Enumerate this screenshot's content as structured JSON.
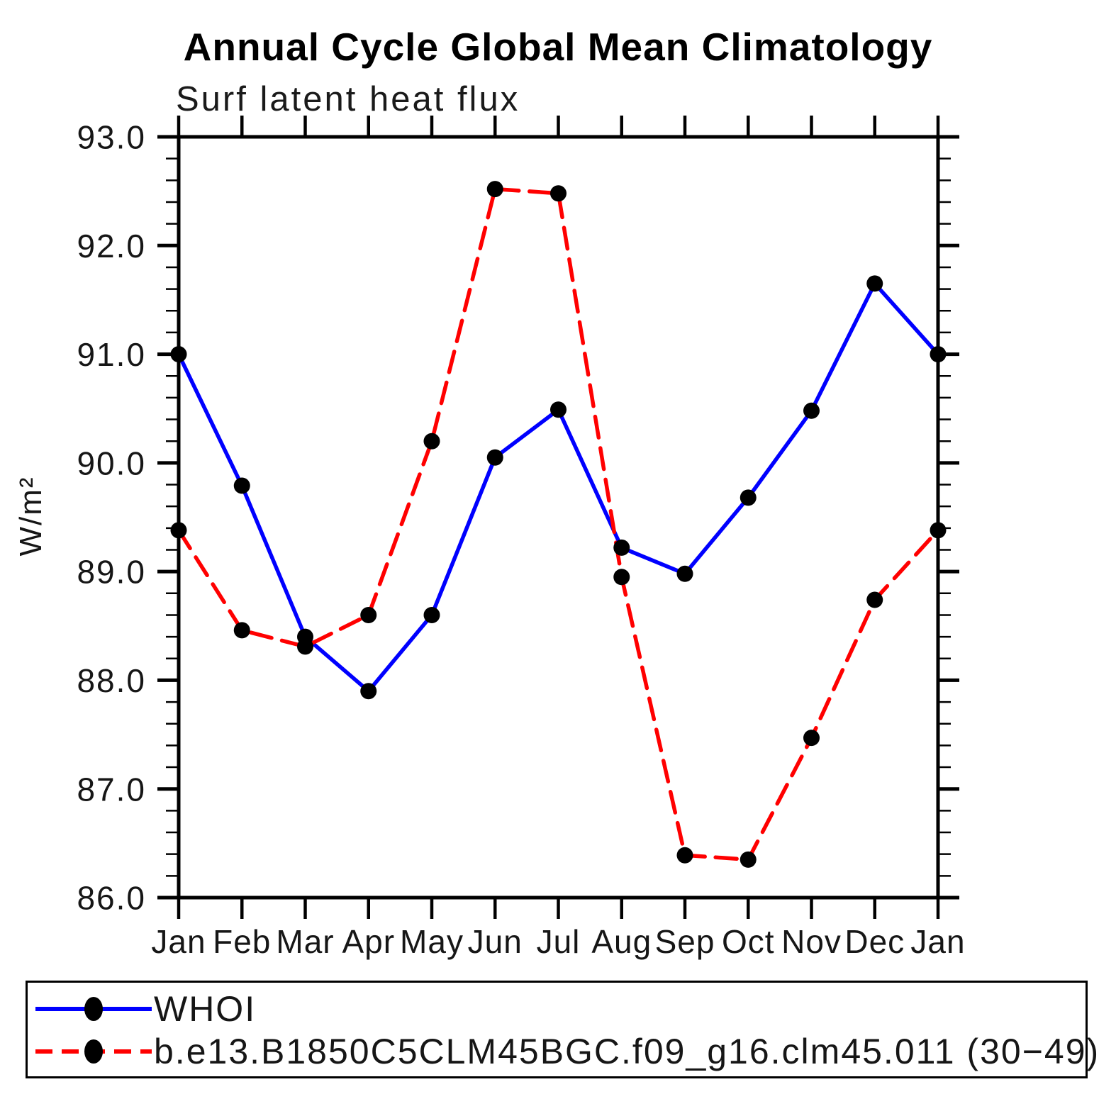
{
  "title": "Annual Cycle Global Mean Climatology",
  "subtitle": "Surf latent heat flux",
  "ylabel": "W/m²",
  "chart_data": {
    "type": "line",
    "x_categories": [
      "Jan",
      "Feb",
      "Mar",
      "Apr",
      "May",
      "Jun",
      "Jul",
      "Aug",
      "Sep",
      "Oct",
      "Nov",
      "Dec",
      "Jan"
    ],
    "ylim": [
      86.0,
      93.0
    ],
    "ytick_step": 1.0,
    "ytick_minor_step": 0.2,
    "ytick_labels": [
      "86.0",
      "87.0",
      "88.0",
      "89.0",
      "90.0",
      "91.0",
      "92.0",
      "93.0"
    ],
    "grid": false,
    "legend_position": "bottom",
    "axis_color": "#000000",
    "marker_color": "#000000",
    "series": [
      {
        "name": "WHOI",
        "color": "#0000ff",
        "style": "solid",
        "marker": "circle",
        "values": [
          91.0,
          89.79,
          88.4,
          87.9,
          88.6,
          90.05,
          90.49,
          89.22,
          88.98,
          89.68,
          90.48,
          91.65,
          91.0
        ]
      },
      {
        "name": "b.e13.B1850C5CLM45BGC.f09_g16.clm45.011 (30−49)",
        "color": "#ff0000",
        "style": "dashed",
        "marker": "circle",
        "values": [
          89.38,
          88.46,
          88.31,
          88.6,
          90.2,
          92.52,
          92.48,
          88.95,
          86.39,
          86.35,
          87.47,
          88.74,
          89.38
        ]
      }
    ]
  }
}
